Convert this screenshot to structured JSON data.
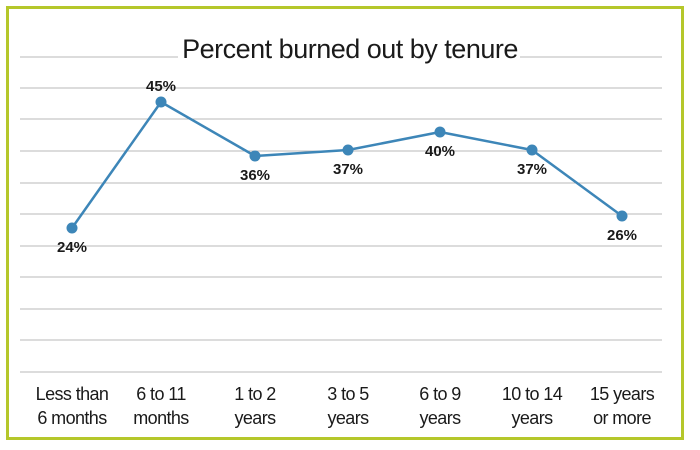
{
  "chart_data": {
    "type": "line",
    "title": "Percent burned out by tenure",
    "categories": [
      [
        "Less than",
        "6 months"
      ],
      [
        "6 to 11",
        "months"
      ],
      [
        "1 to 2",
        "years"
      ],
      [
        "3 to 5",
        "years"
      ],
      [
        "6 to 9",
        "years"
      ],
      [
        "10 to 14",
        "years"
      ],
      [
        "15 years",
        "or more"
      ]
    ],
    "values": [
      24,
      45,
      36,
      37,
      40,
      37,
      26
    ],
    "data_labels": [
      "24%",
      "45%",
      "36%",
      "37%",
      "40%",
      "37%",
      "26%"
    ],
    "label_position": [
      "below",
      "above",
      "below",
      "below",
      "below",
      "below",
      "below"
    ],
    "xlabel": "",
    "ylabel": "",
    "ylim": [
      0,
      54
    ],
    "grid": true,
    "colors": {
      "line": "#3d86b8",
      "frame": "#b5c72a",
      "grid": "#b9b9b9"
    }
  }
}
